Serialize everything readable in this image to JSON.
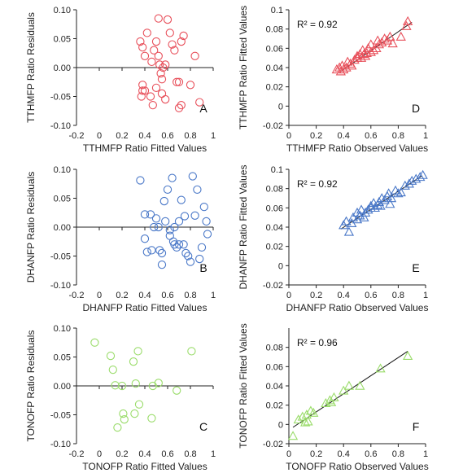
{
  "chart_data": [
    {
      "id": "A",
      "type": "scatter",
      "marker": "circle",
      "color": "#e8505b",
      "panel_label": "A",
      "xlabel": "TTHMFP Ratio Fitted Values",
      "ylabel": "TTHMFP Ratio Residuals",
      "xlim": [
        -0.2,
        1.0
      ],
      "ylim": [
        -0.1,
        0.1
      ],
      "xticks": [
        -0.2,
        0,
        0.2,
        0.4,
        0.6,
        0.8,
        1
      ],
      "xticklabels": [
        "-0.2",
        "0",
        "0.2",
        "0.4",
        "0.6",
        "0.8",
        "1"
      ],
      "yticks": [
        -0.1,
        -0.05,
        0,
        0.05,
        0.1
      ],
      "yticklabels": [
        "-0.10",
        "-0.05",
        "0.00",
        "0.05",
        "0.10"
      ],
      "x": [
        0.36,
        0.38,
        0.42,
        0.4,
        0.38,
        0.37,
        0.38,
        0.4,
        0.45,
        0.47,
        0.48,
        0.5,
        0.52,
        0.52,
        0.53,
        0.54,
        0.55,
        0.56,
        0.55,
        0.58,
        0.6,
        0.62,
        0.64,
        0.66,
        0.68,
        0.7,
        0.72,
        0.74,
        0.7,
        0.72,
        0.8,
        0.84,
        0.88,
        0.58,
        0.5,
        0.46
      ],
      "y": [
        0.045,
        0.035,
        0.06,
        0.02,
        -0.04,
        -0.05,
        -0.03,
        -0.04,
        -0.05,
        -0.065,
        0.03,
        0.045,
        0.085,
        0.02,
        0.005,
        -0.01,
        -0.02,
        0.0,
        -0.045,
        -0.055,
        0.083,
        0.06,
        0.04,
        0.03,
        -0.025,
        -0.07,
        0.045,
        0.055,
        -0.025,
        -0.065,
        -0.03,
        0.02,
        -0.06,
        0.005,
        -0.035,
        0.01
      ]
    },
    {
      "id": "D",
      "type": "scatter",
      "marker": "triangle",
      "color": "#e8505b",
      "panel_label": "D",
      "annotation": "R² = 0.92",
      "xlabel": "TTHMFP Ratio Observed Values",
      "ylabel": "TTHMFP Ratio Fitted Values",
      "xlim": [
        0,
        1.0
      ],
      "ylim": [
        -0.02,
        0.1
      ],
      "xticks": [
        0,
        0.2,
        0.4,
        0.6,
        0.8,
        1
      ],
      "xticklabels": [
        "0",
        "0.2",
        "0.4",
        "0.6",
        "0.8",
        "1"
      ],
      "yticks": [
        -0.02,
        0,
        0.02,
        0.04,
        0.06,
        0.08,
        0.1
      ],
      "yticklabels": [
        "-0.02",
        "0",
        "0.02",
        "0.04",
        "0.06",
        "0.08",
        "0.1"
      ],
      "fit_line": {
        "x": [
          0.38,
          0.9
        ],
        "y": [
          0.036,
          0.087
        ]
      },
      "x": [
        0.35,
        0.37,
        0.38,
        0.39,
        0.4,
        0.42,
        0.43,
        0.45,
        0.46,
        0.48,
        0.5,
        0.5,
        0.52,
        0.53,
        0.54,
        0.55,
        0.56,
        0.57,
        0.58,
        0.6,
        0.6,
        0.62,
        0.64,
        0.65,
        0.66,
        0.68,
        0.7,
        0.72,
        0.74,
        0.76,
        0.82,
        0.86,
        0.87
      ],
      "y": [
        0.038,
        0.04,
        0.036,
        0.042,
        0.038,
        0.04,
        0.046,
        0.044,
        0.042,
        0.048,
        0.052,
        0.05,
        0.054,
        0.05,
        0.058,
        0.054,
        0.052,
        0.055,
        0.06,
        0.064,
        0.056,
        0.058,
        0.06,
        0.068,
        0.064,
        0.066,
        0.07,
        0.068,
        0.072,
        0.065,
        0.072,
        0.083,
        0.088
      ]
    },
    {
      "id": "B",
      "type": "scatter",
      "marker": "circle",
      "color": "#4a78c8",
      "panel_label": "B",
      "xlabel": "DHANFP Ratio Fitted Values",
      "ylabel": "DHANFP Ratio Residuals",
      "xlim": [
        -0.2,
        1.0
      ],
      "ylim": [
        -0.1,
        0.1
      ],
      "xticks": [
        -0.2,
        0,
        0.2,
        0.4,
        0.6,
        0.8,
        1
      ],
      "xticklabels": [
        "-0.2",
        "0",
        "0.2",
        "0.4",
        "0.6",
        "0.8",
        "1"
      ],
      "yticks": [
        -0.1,
        -0.05,
        0,
        0.05,
        0.1
      ],
      "yticklabels": [
        "-0.10",
        "-0.05",
        "0.00",
        "0.05",
        "0.10"
      ],
      "x": [
        0.36,
        0.4,
        0.42,
        0.45,
        0.46,
        0.5,
        0.52,
        0.53,
        0.55,
        0.55,
        0.57,
        0.58,
        0.6,
        0.62,
        0.62,
        0.64,
        0.65,
        0.66,
        0.66,
        0.68,
        0.7,
        0.72,
        0.74,
        0.75,
        0.76,
        0.78,
        0.8,
        0.82,
        0.84,
        0.86,
        0.88,
        0.9,
        0.92,
        0.94,
        0.95,
        0.4,
        0.48,
        0.7
      ],
      "y": [
        0.081,
        0.022,
        -0.043,
        0.022,
        -0.04,
        0.015,
        0.0,
        -0.04,
        -0.045,
        -0.065,
        0.045,
        0.01,
        0.065,
        -0.005,
        -0.015,
        0.085,
        -0.025,
        0.0,
        -0.03,
        -0.035,
        0.01,
        0.047,
        -0.03,
        0.019,
        -0.045,
        -0.05,
        -0.06,
        0.088,
        0.02,
        0.065,
        -0.055,
        -0.035,
        0.035,
        0.01,
        -0.012,
        -0.02,
        0.0,
        -0.03
      ]
    },
    {
      "id": "E",
      "type": "scatter",
      "marker": "triangle",
      "color": "#4a78c8",
      "panel_label": "E",
      "annotation": "R² = 0.92",
      "xlabel": "DHANFP Ratio Observed Values",
      "ylabel": "DHANFP Ratio Fitted Values",
      "xlim": [
        0,
        1.0
      ],
      "ylim": [
        -0.02,
        0.1
      ],
      "xticks": [
        0,
        0.2,
        0.4,
        0.6,
        0.8,
        1
      ],
      "xticklabels": [
        "0",
        "0.2",
        "0.4",
        "0.6",
        "0.8",
        "1"
      ],
      "yticks": [
        -0.02,
        0,
        0.02,
        0.04,
        0.06,
        0.08,
        0.1
      ],
      "yticklabels": [
        "-0.02",
        "0",
        "0.02",
        "0.04",
        "0.06",
        "0.08",
        "0.1"
      ],
      "fit_line": {
        "x": [
          0.38,
          0.97
        ],
        "y": [
          0.038,
          0.093
        ]
      },
      "x": [
        0.4,
        0.42,
        0.44,
        0.46,
        0.47,
        0.5,
        0.5,
        0.52,
        0.53,
        0.55,
        0.56,
        0.58,
        0.6,
        0.6,
        0.62,
        0.63,
        0.65,
        0.66,
        0.67,
        0.68,
        0.7,
        0.72,
        0.73,
        0.74,
        0.75,
        0.78,
        0.8,
        0.82,
        0.85,
        0.88,
        0.9,
        0.93,
        0.96,
        0.98
      ],
      "y": [
        0.042,
        0.046,
        0.035,
        0.044,
        0.05,
        0.048,
        0.055,
        0.052,
        0.058,
        0.05,
        0.055,
        0.058,
        0.06,
        0.062,
        0.065,
        0.06,
        0.063,
        0.066,
        0.062,
        0.07,
        0.068,
        0.072,
        0.075,
        0.064,
        0.07,
        0.078,
        0.075,
        0.076,
        0.083,
        0.085,
        0.088,
        0.09,
        0.092,
        0.094
      ]
    },
    {
      "id": "C",
      "type": "scatter",
      "marker": "circle",
      "color": "#9adc6a",
      "panel_label": "C",
      "xlabel": "TONOFP Ratio Fitted Values",
      "ylabel": "TONOFP Ratio Residuals",
      "xlim": [
        -0.2,
        1.0
      ],
      "ylim": [
        -0.1,
        0.1
      ],
      "xticks": [
        -0.2,
        0,
        0.2,
        0.4,
        0.6,
        0.8,
        1
      ],
      "xticklabels": [
        "-0.2",
        "0",
        "0.2",
        "0.4",
        "0.6",
        "0.8",
        "1"
      ],
      "yticks": [
        -0.1,
        -0.05,
        0,
        0.05,
        0.1
      ],
      "yticklabels": [
        "-0.10",
        "-0.05",
        "0.00",
        "0.05",
        "0.10"
      ],
      "x": [
        -0.04,
        0.1,
        0.12,
        0.14,
        0.16,
        0.2,
        0.21,
        0.22,
        0.3,
        0.31,
        0.32,
        0.34,
        0.35,
        0.46,
        0.47,
        0.52,
        0.68,
        0.81
      ],
      "y": [
        0.075,
        0.052,
        0.028,
        0.001,
        -0.072,
        0.0,
        -0.048,
        -0.058,
        0.042,
        -0.048,
        0.004,
        0.06,
        -0.032,
        -0.056,
        0.0,
        0.005,
        -0.008,
        0.06
      ]
    },
    {
      "id": "F",
      "type": "scatter",
      "marker": "triangle",
      "color": "#9adc6a",
      "panel_label": "F",
      "annotation": "R² = 0.96",
      "xlabel": "TONOFP Ratio Observed Values",
      "ylabel": "TONOFP Ratio Fitted Values",
      "xlim": [
        0,
        1.0
      ],
      "ylim": [
        -0.02,
        0.1
      ],
      "xticks": [
        0,
        0.2,
        0.4,
        0.6,
        0.8,
        1
      ],
      "xticklabels": [
        "0",
        "0.2",
        "0.4",
        "0.6",
        "0.8",
        "1"
      ],
      "yticks": [
        -0.02,
        0,
        0.02,
        0.04,
        0.06,
        0.08
      ],
      "yticklabels": [
        "-0.02",
        "0",
        "0.02",
        "0.04",
        "0.06",
        "0.08"
      ],
      "fit_line": {
        "x": [
          0.03,
          0.87
        ],
        "y": [
          -0.003,
          0.076
        ]
      },
      "x": [
        0.03,
        0.07,
        0.1,
        0.12,
        0.13,
        0.14,
        0.16,
        0.18,
        0.27,
        0.3,
        0.31,
        0.33,
        0.4,
        0.44,
        0.52,
        0.67,
        0.87
      ],
      "y": [
        -0.012,
        0.005,
        0.008,
        0.002,
        0.01,
        0.003,
        0.014,
        0.012,
        0.022,
        0.025,
        0.023,
        0.028,
        0.035,
        0.04,
        0.04,
        0.058,
        0.071
      ]
    }
  ]
}
